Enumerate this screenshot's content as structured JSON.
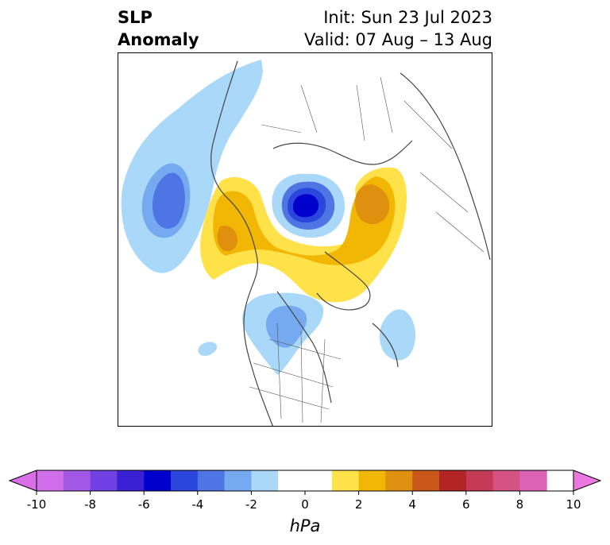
{
  "title": {
    "variable_line1": "SLP",
    "variable_line2": "Anomaly",
    "init": "Init: Sun 23 Jul 2023",
    "valid": "Valid: 07 Aug – 13 Aug"
  },
  "colorbar": {
    "unit": "hPa",
    "tick_labels": [
      "-10",
      "-8",
      "-6",
      "-4",
      "-2",
      "0",
      "2",
      "4",
      "6",
      "8",
      "10"
    ],
    "bins": [
      {
        "from": -10,
        "to": -9,
        "color": "#d06fe9"
      },
      {
        "from": -9,
        "to": -8,
        "color": "#a258e5"
      },
      {
        "from": -8,
        "to": -7,
        "color": "#7140e0"
      },
      {
        "from": -7,
        "to": -6,
        "color": "#3b1fd3"
      },
      {
        "from": -6,
        "to": -5,
        "color": "#0000cc"
      },
      {
        "from": -5,
        "to": -4,
        "color": "#2a46dd"
      },
      {
        "from": -4,
        "to": -3,
        "color": "#4f74e4"
      },
      {
        "from": -3,
        "to": -2,
        "color": "#76aaf0"
      },
      {
        "from": -2,
        "to": -1,
        "color": "#aad8f9"
      },
      {
        "from": -1,
        "to": 1,
        "color": "#ffffff"
      },
      {
        "from": 1,
        "to": 2,
        "color": "#ffe14a"
      },
      {
        "from": 2,
        "to": 3,
        "color": "#f2b705"
      },
      {
        "from": 3,
        "to": 4,
        "color": "#e0900f"
      },
      {
        "from": 4,
        "to": 5,
        "color": "#c9581a"
      },
      {
        "from": 5,
        "to": 6,
        "color": "#b32424"
      },
      {
        "from": 6,
        "to": 7,
        "color": "#c43a57"
      },
      {
        "from": 7,
        "to": 8,
        "color": "#d45383"
      },
      {
        "from": 8,
        "to": 9,
        "color": "#dc62b6"
      }
    ],
    "under_color": "#d86fe6",
    "over_color": "#ea78de"
  }
}
